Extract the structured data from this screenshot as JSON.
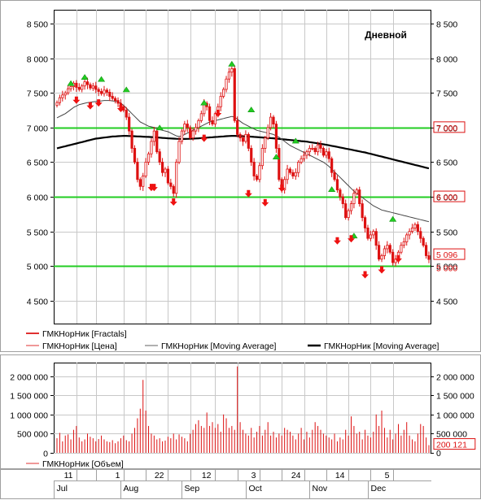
{
  "chart_data": [
    {
      "type": "line",
      "title": "Дневной",
      "yticks": [
        "4 500",
        "5 000",
        "5 500",
        "6 000",
        "6 500",
        "7 000",
        "7 500",
        "8 000",
        "8 500"
      ],
      "ytick_values": [
        4500,
        5000,
        5500,
        6000,
        6500,
        7000,
        7500,
        8000,
        8500
      ],
      "ylim": [
        4170,
        8700
      ],
      "grid": true,
      "hlines": [
        {
          "value": 7000,
          "label": "7 000"
        },
        {
          "value": 6000,
          "label": "6 000"
        },
        {
          "value": 5000,
          "label": "5 000"
        }
      ],
      "last_price": {
        "value": 5096,
        "label": "5 096"
      },
      "legend": [
        {
          "name": "ГМКНорНик [Fractals]",
          "color": "#e03030",
          "style": "thick"
        },
        {
          "name": "ГМКНорНик [Цена]",
          "color": "#e03030",
          "style": "thin"
        },
        {
          "name": "ГМКНорНик [Moving Average]",
          "color": "#606060",
          "style": "thin"
        },
        {
          "name": "ГМКНорНик [Moving Average]",
          "color": "#000000",
          "style": "thick"
        }
      ],
      "colors": {
        "price": "#dd1111",
        "ma_short": "#444444",
        "ma_long": "#000000",
        "hline": "#22cc22",
        "fractal_up": "#22cc22",
        "fractal_down": "#ee1111"
      },
      "price_close": [
        7360,
        7430,
        7470,
        7500,
        7560,
        7590,
        7640,
        7580,
        7550,
        7600,
        7660,
        7620,
        7570,
        7600,
        7550,
        7520,
        7490,
        7540,
        7510,
        7450,
        7420,
        7390,
        7350,
        7300,
        7250,
        7150,
        6950,
        6700,
        6500,
        6250,
        6150,
        6300,
        6500,
        6620,
        6800,
        6950,
        6650,
        6500,
        6350,
        6400,
        6200,
        6150,
        6050,
        6500,
        6800,
        6950,
        7050,
        7000,
        6850,
        6950,
        7000,
        7100,
        7200,
        7350,
        7300,
        7100,
        7050,
        7200,
        7300,
        7450,
        7550,
        7700,
        7800,
        7850,
        7100,
        6900,
        6850,
        6800,
        6900,
        6700,
        6500,
        6300,
        6250,
        6450,
        6700,
        6850,
        7000,
        7150,
        7050,
        6700,
        6250,
        6100,
        6250,
        6400,
        6350,
        6300,
        6350,
        6500,
        6550,
        6600,
        6650,
        6700,
        6700,
        6650,
        6750,
        6700,
        6600,
        6650,
        6550,
        6350,
        6250,
        6100,
        6000,
        5900,
        5700,
        5800,
        5900,
        6050,
        6100,
        5900,
        5700,
        5550,
        5400,
        5450,
        5500,
        5300,
        5100,
        5150,
        5250,
        5300,
        5200,
        5050,
        5100,
        5200,
        5300,
        5350,
        5450,
        5500,
        5550,
        5600,
        5500,
        5400,
        5300,
        5150,
        5096
      ],
      "fractals_up": [
        [
          5,
          7640
        ],
        [
          10,
          7730
        ],
        [
          16,
          7700
        ],
        [
          25,
          7550
        ],
        [
          37,
          7000
        ],
        [
          53,
          7360
        ],
        [
          63,
          7920
        ],
        [
          70,
          7260
        ],
        [
          79,
          6580
        ],
        [
          86,
          6810
        ],
        [
          99,
          6110
        ],
        [
          107,
          5440
        ],
        [
          121,
          5680
        ]
      ],
      "fractals_down": [
        [
          7,
          7400
        ],
        [
          12,
          7320
        ],
        [
          15,
          7360
        ],
        [
          23,
          7280
        ],
        [
          34,
          6140
        ],
        [
          35,
          6140
        ],
        [
          42,
          5930
        ],
        [
          53,
          6850
        ],
        [
          58,
          7210
        ],
        [
          69,
          6050
        ],
        [
          75,
          5920
        ],
        [
          81,
          6130
        ],
        [
          101,
          5370
        ],
        [
          106,
          5400
        ],
        [
          111,
          4880
        ],
        [
          117,
          4950
        ],
        [
          123,
          5110
        ]
      ],
      "ma_short": [
        7140,
        7160,
        7180,
        7200,
        7230,
        7260,
        7290,
        7310,
        7330,
        7340,
        7350,
        7360,
        7365,
        7370,
        7375,
        7380,
        7385,
        7390,
        7390,
        7390,
        7385,
        7380,
        7370,
        7350,
        7320,
        7280,
        7240,
        7200,
        7160,
        7120,
        7080,
        7060,
        7040,
        7020,
        7010,
        7000,
        6990,
        6970,
        6960,
        6950,
        6940,
        6920,
        6900,
        6880,
        6870,
        6880,
        6900,
        6920,
        6940,
        6960,
        6980,
        7000,
        7020,
        7040,
        7060,
        7080,
        7090,
        7100,
        7110,
        7120,
        7130,
        7140,
        7150,
        7160,
        7150,
        7120,
        7090,
        7060,
        7040,
        7020,
        7000,
        6980,
        6960,
        6950,
        6940,
        6930,
        6920,
        6910,
        6900,
        6880,
        6860,
        6830,
        6800,
        6770,
        6740,
        6720,
        6700,
        6680,
        6660,
        6640,
        6620,
        6600,
        6580,
        6560,
        6540,
        6520,
        6500,
        6470,
        6440,
        6400,
        6360,
        6320,
        6280,
        6240,
        6200,
        6160,
        6120,
        6080,
        6050,
        6020,
        5990,
        5960,
        5930,
        5900,
        5870,
        5850,
        5830,
        5810,
        5800,
        5790,
        5780,
        5770,
        5760,
        5750,
        5740,
        5730,
        5720,
        5710,
        5700,
        5690,
        5680,
        5670,
        5660,
        5650,
        5640
      ],
      "ma_long": [
        6700,
        6710,
        6720,
        6730,
        6740,
        6750,
        6760,
        6770,
        6780,
        6790,
        6800,
        6810,
        6820,
        6830,
        6840,
        6845,
        6850,
        6855,
        6860,
        6865,
        6870,
        6872,
        6875,
        6877,
        6880,
        6880,
        6878,
        6876,
        6874,
        6872,
        6870,
        6868,
        6866,
        6864,
        6862,
        6860,
        6857,
        6854,
        6851,
        6848,
        6845,
        6842,
        6840,
        6838,
        6836,
        6835,
        6835,
        6836,
        6838,
        6840,
        6842,
        6845,
        6848,
        6851,
        6854,
        6857,
        6860,
        6863,
        6866,
        6869,
        6872,
        6875,
        6878,
        6880,
        6880,
        6878,
        6876,
        6874,
        6872,
        6870,
        6868,
        6865,
        6862,
        6859,
        6856,
        6853,
        6850,
        6847,
        6844,
        6840,
        6836,
        6832,
        6828,
        6824,
        6820,
        6816,
        6812,
        6808,
        6804,
        6800,
        6796,
        6790,
        6784,
        6778,
        6772,
        6765,
        6758,
        6751,
        6744,
        6736,
        6728,
        6720,
        6712,
        6704,
        6696,
        6688,
        6680,
        6672,
        6664,
        6656,
        6648,
        6640,
        6630,
        6620,
        6610,
        6600,
        6590,
        6580,
        6570,
        6560,
        6550,
        6540,
        6530,
        6520,
        6510,
        6500,
        6490,
        6480,
        6470,
        6460,
        6450,
        6440,
        6430,
        6420,
        6410
      ]
    },
    {
      "type": "bar",
      "title": "",
      "yticks": [
        "0",
        "500 000",
        "1 000 000",
        "1 500 000",
        "2 000 000"
      ],
      "ytick_values": [
        0,
        500000,
        1000000,
        1500000,
        2000000
      ],
      "ylim": [
        0,
        2350000
      ],
      "last_value": {
        "value": 200121,
        "label": "200 121"
      },
      "legend": [
        {
          "name": "ГМКНорНик [Объем]",
          "color": "#e03030"
        }
      ],
      "volumes": [
        380000,
        520000,
        300000,
        450000,
        480000,
        350000,
        600000,
        700000,
        400000,
        300000,
        350000,
        500000,
        420000,
        380000,
        300000,
        360000,
        450000,
        350000,
        300000,
        280000,
        330000,
        250000,
        300000,
        380000,
        450000,
        330000,
        300000,
        500000,
        650000,
        900000,
        1150000,
        1900000,
        1100000,
        700000,
        500000,
        450000,
        350000,
        380000,
        300000,
        320000,
        420000,
        380000,
        500000,
        350000,
        480000,
        420000,
        380000,
        300000,
        500000,
        600000,
        750000,
        850000,
        700000,
        650000,
        1050000,
        700000,
        800000,
        650000,
        750000,
        550000,
        1000000,
        900000,
        650000,
        700000,
        600000,
        2250000,
        800000,
        600000,
        500000,
        450000,
        650000,
        400000,
        550000,
        700000,
        450000,
        600000,
        800000,
        450000,
        550000,
        400000,
        500000,
        450000,
        650000,
        600000,
        550000,
        450000,
        350000,
        500000,
        650000,
        350000,
        550000,
        400000,
        600000,
        800000,
        700000,
        600000,
        500000,
        450000,
        400000,
        350000,
        500000,
        300000,
        400000,
        350000,
        600000,
        450000,
        950000,
        700000,
        500000,
        550000,
        350000,
        600000,
        450000,
        400000,
        550000,
        1000000,
        700000,
        1100000,
        650000,
        400000,
        600000,
        350000,
        500000,
        750000,
        450000,
        600000,
        800000,
        450000,
        350000,
        300000,
        500000,
        750000,
        700000,
        400000,
        200121
      ]
    }
  ],
  "xaxis": {
    "days": [
      {
        "label": "11",
        "idx": 7
      },
      {
        "label": "",
        "idx": 14
      },
      {
        "label": "1",
        "idx": 24
      },
      {
        "label": "",
        "idx": 32
      },
      {
        "label": "22",
        "idx": 40
      },
      {
        "label": "",
        "idx": 48
      },
      {
        "label": "12",
        "idx": 57
      },
      {
        "label": "",
        "idx": 65
      },
      {
        "label": "3",
        "idx": 73
      },
      {
        "label": "",
        "idx": 81
      },
      {
        "label": "24",
        "idx": 89
      },
      {
        "label": "",
        "idx": 97
      },
      {
        "label": "14",
        "idx": 105
      },
      {
        "label": "",
        "idx": 113
      },
      {
        "label": "5",
        "idx": 121
      }
    ],
    "months": [
      {
        "label": "Jul",
        "idx": -1
      },
      {
        "label": "Aug",
        "idx": 23
      },
      {
        "label": "Sep",
        "idx": 45
      },
      {
        "label": "Oct",
        "idx": 68
      },
      {
        "label": "Nov",
        "idx": 91
      },
      {
        "label": "Dec",
        "idx": 112
      }
    ]
  }
}
